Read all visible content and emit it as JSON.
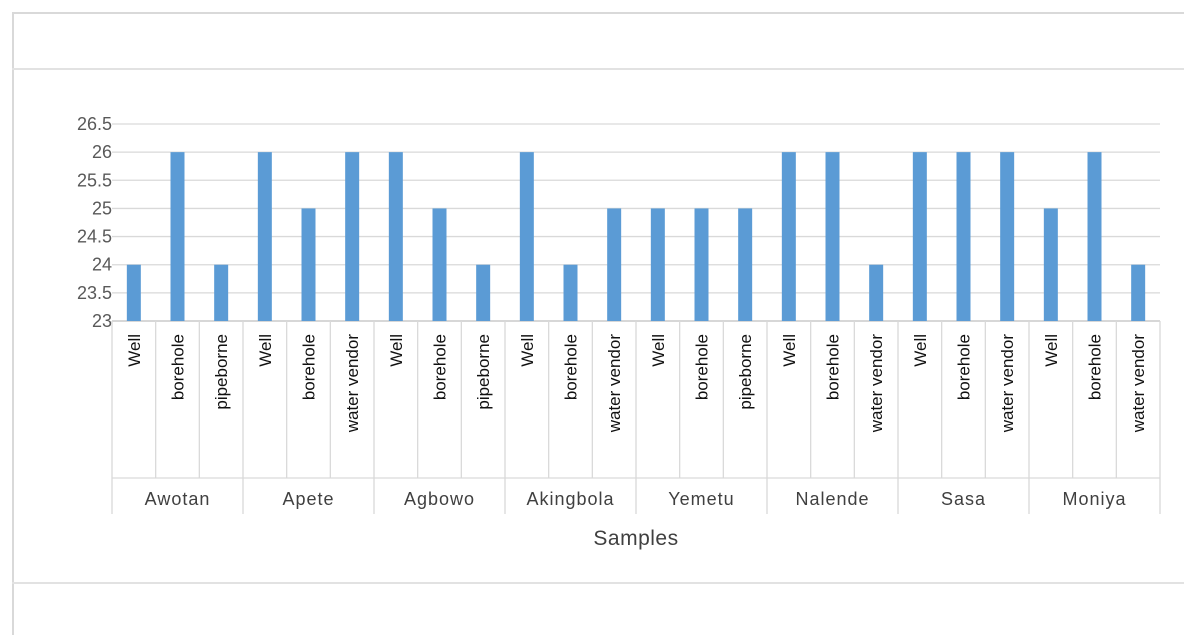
{
  "chart_data": {
    "type": "bar",
    "title": "",
    "xlabel": "Samples",
    "ylabel": "",
    "ylim": [
      23,
      26.5
    ],
    "yticks": [
      "23",
      "23.5",
      "24",
      "24.5",
      "25",
      "25.5",
      "26",
      "26.5"
    ],
    "grid": true,
    "legend": "none",
    "bar_color": "#5b9bd5",
    "groups": [
      {
        "name": "Awotan",
        "categories": [
          "Well",
          "borehole",
          "pipeborne"
        ],
        "values": [
          24,
          26,
          24
        ]
      },
      {
        "name": "Apete",
        "categories": [
          "Well",
          "borehole",
          "water vendor"
        ],
        "values": [
          26,
          25,
          26
        ]
      },
      {
        "name": "Agbowo",
        "categories": [
          "Well",
          "borehole",
          "pipeborne"
        ],
        "values": [
          26,
          25,
          24
        ]
      },
      {
        "name": "Akingbola",
        "categories": [
          "Well",
          "borehole",
          "water vendor"
        ],
        "values": [
          26,
          24,
          25
        ]
      },
      {
        "name": "Yemetu",
        "categories": [
          "Well",
          "borehole",
          "pipeborne"
        ],
        "values": [
          25,
          25,
          25
        ]
      },
      {
        "name": "Nalende",
        "categories": [
          "Well",
          "borehole",
          "water vendor"
        ],
        "values": [
          26,
          26,
          24
        ]
      },
      {
        "name": "Sasa",
        "categories": [
          "Well",
          "borehole",
          "water vendor"
        ],
        "values": [
          26,
          26,
          26
        ]
      },
      {
        "name": "Moniya",
        "categories": [
          "Well",
          "borehole",
          "water vendor"
        ],
        "values": [
          25,
          26,
          24
        ]
      }
    ]
  }
}
